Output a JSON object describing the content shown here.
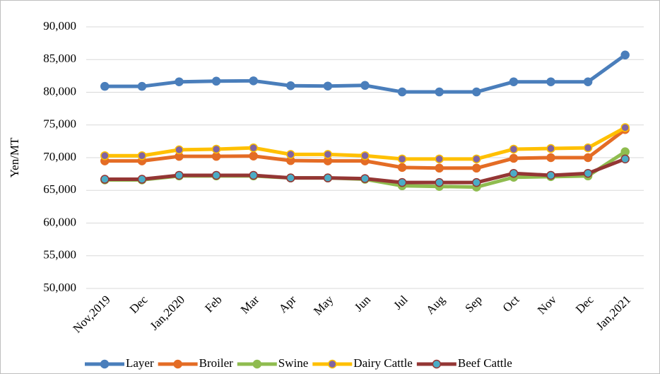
{
  "chart_data": {
    "type": "line",
    "y_label": "Yen/MT",
    "categories": [
      "Nov,2019",
      "Dec",
      "Jan,2020",
      "Feb",
      "Mar",
      "Apr",
      "May",
      "Jun",
      "Jul",
      "Aug",
      "Sep",
      "Oct",
      "Nov",
      "Dec",
      "Jan,2021"
    ],
    "series": [
      {
        "name": "Layer",
        "color": "#4a7ebb",
        "marker_color": "#4a7ebb",
        "values": [
          80900,
          80900,
          81600,
          81700,
          81750,
          81000,
          80950,
          81050,
          80050,
          80050,
          80050,
          81600,
          81600,
          81600,
          85700
        ]
      },
      {
        "name": "Broiler",
        "color": "#e46c25",
        "marker_color": "#e46c25",
        "values": [
          69500,
          69500,
          70200,
          70200,
          70250,
          69550,
          69500,
          69500,
          68500,
          68400,
          68400,
          69900,
          70000,
          70000,
          74300
        ]
      },
      {
        "name": "Swine",
        "color": "#8fbc4f",
        "marker_color": "#8fbc4f",
        "values": [
          66600,
          66600,
          67200,
          67200,
          67200,
          66900,
          66900,
          66700,
          65700,
          65600,
          65500,
          67000,
          67100,
          67200,
          70900
        ]
      },
      {
        "name": "Dairy Cattle",
        "color": "#ffc000",
        "marker_color": "#8064a2",
        "values": [
          70300,
          70300,
          71200,
          71300,
          71500,
          70500,
          70500,
          70300,
          69800,
          69800,
          69800,
          71300,
          71400,
          71500,
          74600
        ]
      },
      {
        "name": "Beef Cattle",
        "color": "#943634",
        "marker_color": "#4bacc6",
        "values": [
          66700,
          66700,
          67300,
          67300,
          67300,
          66900,
          66900,
          66800,
          66200,
          66200,
          66200,
          67600,
          67300,
          67600,
          69800
        ]
      }
    ],
    "ylim": [
      50000,
      90000
    ],
    "yticks": [
      {
        "value": 50000,
        "label": "50,000"
      },
      {
        "value": 55000,
        "label": "55,000"
      },
      {
        "value": 60000,
        "label": "60,000"
      },
      {
        "value": 65000,
        "label": "65,000"
      },
      {
        "value": 70000,
        "label": "70,000"
      },
      {
        "value": 75000,
        "label": "75,000"
      },
      {
        "value": 80000,
        "label": "80,000"
      },
      {
        "value": 85000,
        "label": "85,000"
      },
      {
        "value": 90000,
        "label": "90,000"
      }
    ],
    "grid": true,
    "legend": "bottom"
  }
}
